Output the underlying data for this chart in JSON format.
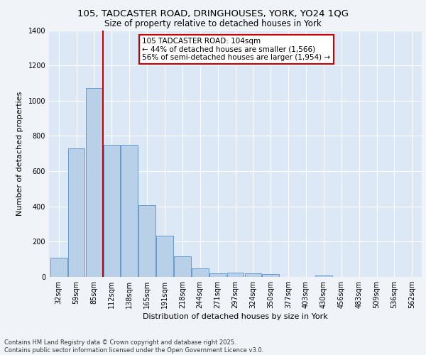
{
  "title1": "105, TADCASTER ROAD, DRINGHOUSES, YORK, YO24 1QG",
  "title2": "Size of property relative to detached houses in York",
  "xlabel": "Distribution of detached houses by size in York",
  "ylabel": "Number of detached properties",
  "categories": [
    "32sqm",
    "59sqm",
    "85sqm",
    "112sqm",
    "138sqm",
    "165sqm",
    "191sqm",
    "218sqm",
    "244sqm",
    "271sqm",
    "297sqm",
    "324sqm",
    "350sqm",
    "377sqm",
    "403sqm",
    "430sqm",
    "456sqm",
    "483sqm",
    "509sqm",
    "536sqm",
    "562sqm"
  ],
  "values": [
    110,
    730,
    1070,
    750,
    750,
    405,
    235,
    115,
    50,
    20,
    25,
    20,
    15,
    0,
    0,
    10,
    0,
    0,
    0,
    0,
    0
  ],
  "bar_color": "#b8d0e8",
  "bar_edge_color": "#6699cc",
  "bg_color": "#dce8f5",
  "grid_color": "#ffffff",
  "fig_bg_color": "#f0f4f8",
  "vline_x": 2.5,
  "vline_color": "#cc0000",
  "annotation_text": "105 TADCASTER ROAD: 104sqm\n← 44% of detached houses are smaller (1,566)\n56% of semi-detached houses are larger (1,954) →",
  "annotation_box_facecolor": "#ffffff",
  "annotation_box_edgecolor": "#cc0000",
  "footnote": "Contains HM Land Registry data © Crown copyright and database right 2025.\nContains public sector information licensed under the Open Government Licence v3.0.",
  "ylim": [
    0,
    1400
  ],
  "yticks": [
    0,
    200,
    400,
    600,
    800,
    1000,
    1200,
    1400
  ],
  "title1_fontsize": 9.5,
  "title2_fontsize": 8.5,
  "xlabel_fontsize": 8,
  "ylabel_fontsize": 8,
  "tick_fontsize": 7,
  "annot_fontsize": 7.5,
  "footnote_fontsize": 6
}
